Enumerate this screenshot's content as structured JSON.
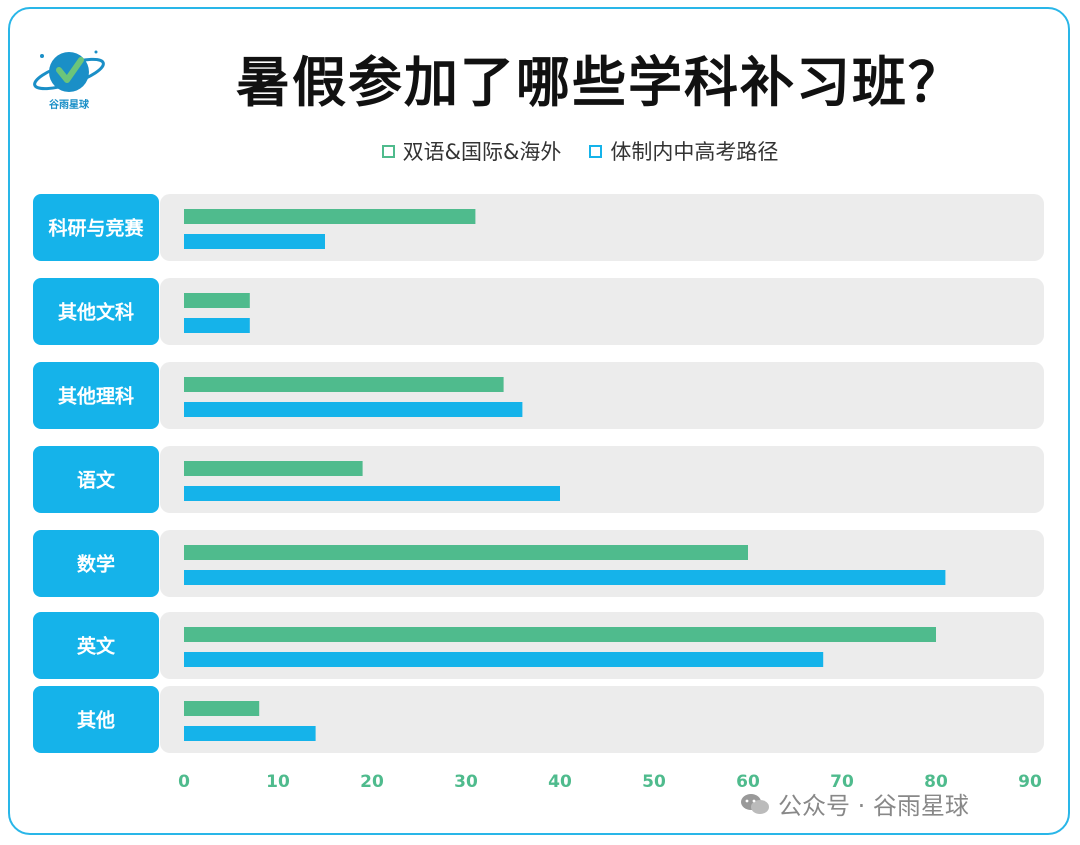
{
  "logo": {
    "text": "谷雨星球"
  },
  "title": "暑假参加了哪些学科补习班？",
  "legend": [
    {
      "name": "双语&国际&海外",
      "color": "#4fbb8d"
    },
    {
      "name": "体制内中高考路径",
      "color": "#15b3ea"
    }
  ],
  "watermark": {
    "text": "公众号 · 谷雨星球",
    "icon": "wechat-icon"
  },
  "colors": {
    "label_bg": "#15b3ea",
    "row_bg": "#ececec",
    "tick": "#4fbb8d",
    "frame": "#29b6e8"
  },
  "chart_data": {
    "type": "bar",
    "orientation": "horizontal",
    "title": "暑假参加了哪些学科补习班？",
    "categories": [
      "科研与竞赛",
      "其他文科",
      "其他理科",
      "语文",
      "数学",
      "英文",
      "其他"
    ],
    "series": [
      {
        "name": "双语&国际&海外",
        "values": [
          31,
          7,
          34,
          19,
          60,
          80,
          8
        ]
      },
      {
        "name": "体制内中高考路径",
        "values": [
          15,
          7,
          36,
          40,
          81,
          68,
          14
        ]
      }
    ],
    "xlim": [
      0,
      90
    ],
    "xticks": [
      0,
      10,
      20,
      30,
      40,
      50,
      60,
      70,
      80,
      90
    ],
    "grid": false,
    "legend_position": "top-center"
  }
}
